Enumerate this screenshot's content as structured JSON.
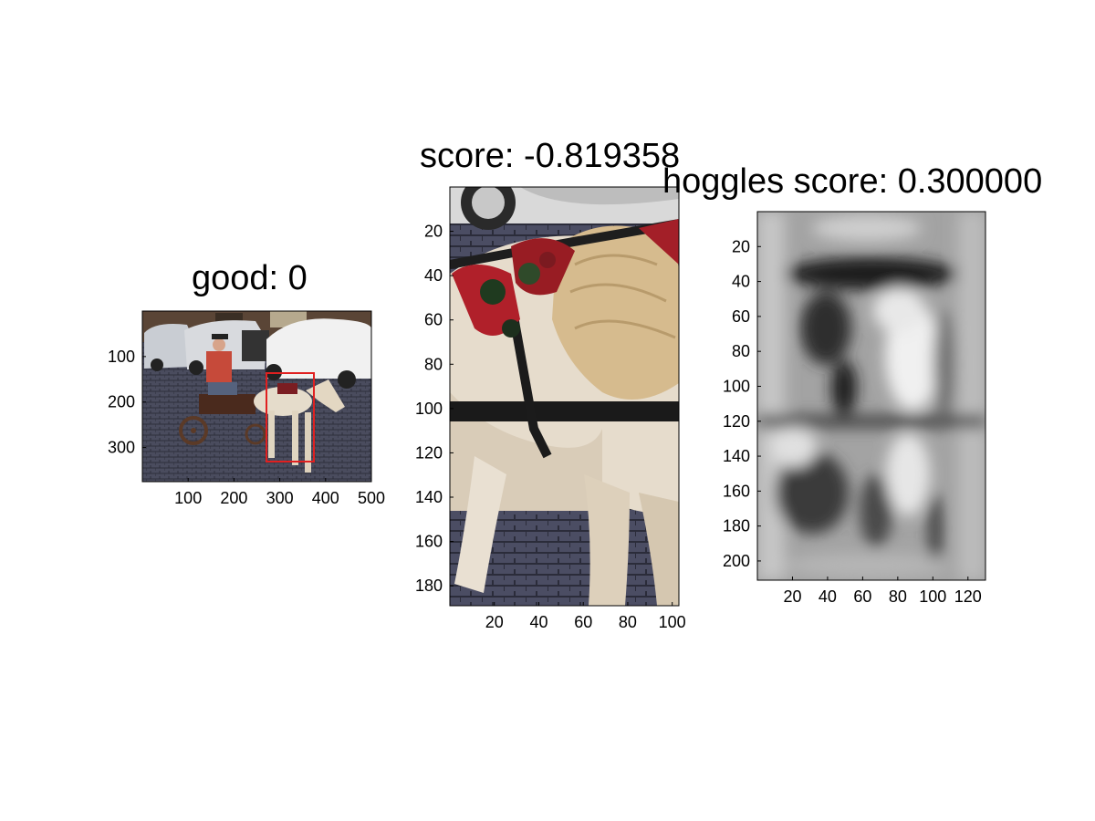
{
  "panels": [
    {
      "id": "original",
      "title": "good: 0",
      "x_ticks": [
        100,
        200,
        300,
        400,
        500
      ],
      "y_ticks": [
        100,
        200,
        300
      ],
      "x_range": [
        0,
        500
      ],
      "y_range": [
        0,
        375
      ],
      "box_color": "#e02020"
    },
    {
      "id": "crop",
      "title": "score: -0.819358",
      "x_ticks": [
        20,
        40,
        60,
        80,
        100
      ],
      "y_ticks": [
        20,
        40,
        60,
        80,
        100,
        120,
        140,
        160,
        180
      ],
      "x_range": [
        0,
        103
      ],
      "y_range": [
        0,
        189
      ]
    },
    {
      "id": "hoggles",
      "title": "hoggles score: 0.300000",
      "x_ticks": [
        20,
        40,
        60,
        80,
        100,
        120
      ],
      "y_ticks": [
        20,
        40,
        60,
        80,
        100,
        120,
        140,
        160,
        180,
        200
      ],
      "x_range": [
        0,
        130
      ],
      "y_range": [
        0,
        211
      ]
    }
  ]
}
